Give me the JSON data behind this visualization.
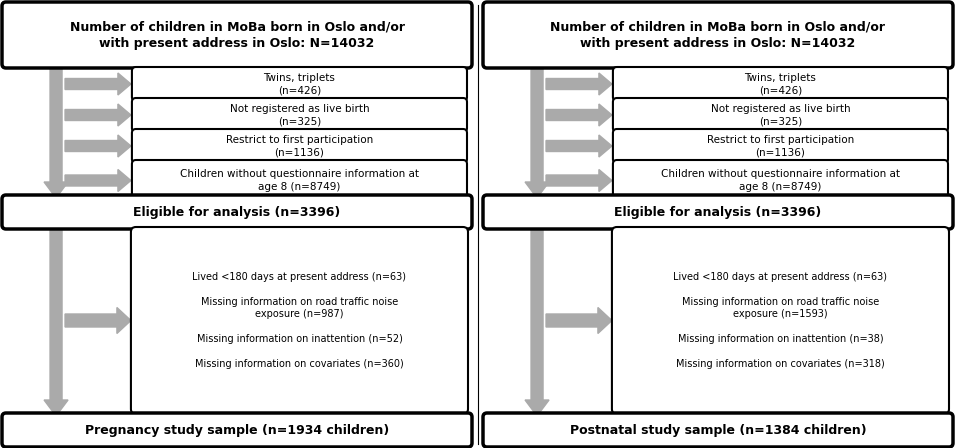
{
  "background_color": "#ffffff",
  "border_color": "#000000",
  "arrow_color": "#aaaaaa",
  "panels": [
    {
      "key": "left",
      "top_text": "Number of children in MoBa born in Oslo and/or\nwith present address in Oslo: N=14032",
      "excl_texts": [
        "Twins, triplets\n(n=426)",
        "Not registered as live birth\n(n=325)",
        "Restrict to first participation\n(n=1136)",
        "Children without questionnaire information at\nage 8 (n=8749)"
      ],
      "elig_text": "Eligible for analysis (n=3396)",
      "excl2_lines": [
        "Lived <180 days at present address (n=63)",
        "Missing information on road traffic noise\nexposure (n=987)",
        "Missing information on inattention (n=52)",
        "Missing information on covariates (n=360)"
      ],
      "bottom_text": "Pregnancy study sample (n=1934 children)"
    },
    {
      "key": "right",
      "top_text": "Number of children in MoBa born in Oslo and/or\nwith present address in Oslo: N=14032",
      "excl_texts": [
        "Twins, triplets\n(n=426)",
        "Not registered as live birth\n(n=325)",
        "Restrict to first participation\n(n=1136)",
        "Children without questionnaire information at\nage 8 (n=8749)"
      ],
      "elig_text": "Eligible for analysis (n=3396)",
      "excl2_lines": [
        "Lived <180 days at present address (n=63)",
        "Missing information on road traffic noise\nexposure (n=1593)",
        "Missing information on inattention (n=38)",
        "Missing information on covariates (n=318)"
      ],
      "bottom_text": "Postnatal study sample (n=1384 children)"
    }
  ]
}
